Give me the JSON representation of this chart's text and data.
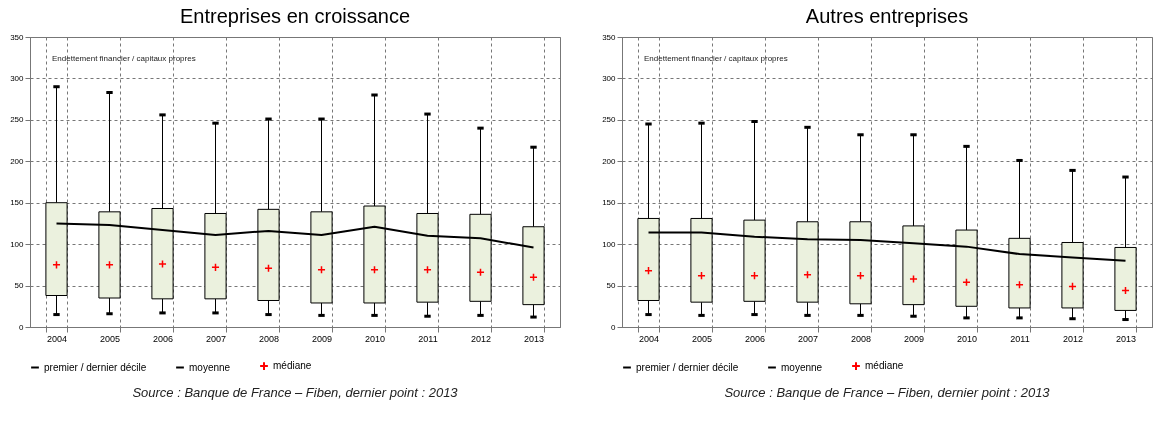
{
  "chart_data": [
    {
      "type": "box",
      "title": "Entreprises en croissance",
      "categories": [
        "2004",
        "2005",
        "2006",
        "2007",
        "2008",
        "2009",
        "2010",
        "2011",
        "2012",
        "2013"
      ],
      "ylim": [
        0,
        350
      ],
      "yticks": [
        0,
        50,
        100,
        150,
        200,
        250,
        300,
        350
      ],
      "grid": true,
      "legend": "bottom",
      "annotations": [
        "Endettement financier / capitaux propres",
        "Source : Banque de France – Fiben, dernier point : 2013"
      ],
      "series": [
        {
          "name": "premier / dernier décile",
          "color": "#000000",
          "boxes": [
            {
              "low": 15,
              "q1": 38,
              "q3": 150,
              "high": 290
            },
            {
              "low": 16,
              "q1": 35,
              "q3": 139,
              "high": 283
            },
            {
              "low": 17,
              "q1": 34,
              "q3": 143,
              "high": 256
            },
            {
              "low": 17,
              "q1": 34,
              "q3": 137,
              "high": 246
            },
            {
              "low": 15,
              "q1": 32,
              "q3": 142,
              "high": 251
            },
            {
              "low": 14,
              "q1": 29,
              "q3": 139,
              "high": 251
            },
            {
              "low": 14,
              "q1": 29,
              "q3": 146,
              "high": 280
            },
            {
              "low": 13,
              "q1": 30,
              "q3": 137,
              "high": 257
            },
            {
              "low": 14,
              "q1": 31,
              "q3": 136,
              "high": 240
            },
            {
              "low": 12,
              "q1": 27,
              "q3": 121,
              "high": 217
            }
          ]
        },
        {
          "type": "line",
          "name": "moyenne",
          "color": "#000000",
          "values": [
            125,
            123,
            117,
            111,
            116,
            111,
            121,
            110,
            107,
            96
          ]
        },
        {
          "type": "scatter",
          "name": "médiane",
          "color": "#ff0000",
          "marker": "cross",
          "values": [
            75,
            75,
            76,
            72,
            71,
            69,
            69,
            69,
            66,
            60
          ]
        }
      ]
    },
    {
      "type": "box",
      "title": "Autres entreprises",
      "categories": [
        "2004",
        "2005",
        "2006",
        "2007",
        "2008",
        "2009",
        "2010",
        "2011",
        "2012",
        "2013"
      ],
      "ylim": [
        0,
        350
      ],
      "yticks": [
        0,
        50,
        100,
        150,
        200,
        250,
        300,
        350
      ],
      "grid": true,
      "legend": "bottom",
      "annotations": [
        "Endettement financier / capitaux propres",
        "Source : Banque de France – Fiben, dernier point : 2013"
      ],
      "series": [
        {
          "name": "premier / dernier décile",
          "color": "#000000",
          "boxes": [
            {
              "low": 15,
              "q1": 32,
              "q3": 131,
              "high": 245
            },
            {
              "low": 14,
              "q1": 30,
              "q3": 131,
              "high": 246
            },
            {
              "low": 15,
              "q1": 31,
              "q3": 129,
              "high": 248
            },
            {
              "low": 14,
              "q1": 30,
              "q3": 127,
              "high": 241
            },
            {
              "low": 14,
              "q1": 28,
              "q3": 127,
              "high": 232
            },
            {
              "low": 13,
              "q1": 27,
              "q3": 122,
              "high": 232
            },
            {
              "low": 11,
              "q1": 25,
              "q3": 117,
              "high": 218
            },
            {
              "low": 11,
              "q1": 23,
              "q3": 107,
              "high": 201
            },
            {
              "low": 10,
              "q1": 23,
              "q3": 102,
              "high": 189
            },
            {
              "low": 9,
              "q1": 20,
              "q3": 96,
              "high": 181
            }
          ]
        },
        {
          "type": "line",
          "name": "moyenne",
          "color": "#000000",
          "values": [
            114,
            114,
            109,
            106,
            105,
            101,
            97,
            88,
            84,
            80
          ]
        },
        {
          "type": "scatter",
          "name": "médiane",
          "color": "#ff0000",
          "marker": "cross",
          "values": [
            68,
            62,
            62,
            63,
            62,
            58,
            54,
            51,
            49,
            44
          ]
        }
      ]
    }
  ]
}
